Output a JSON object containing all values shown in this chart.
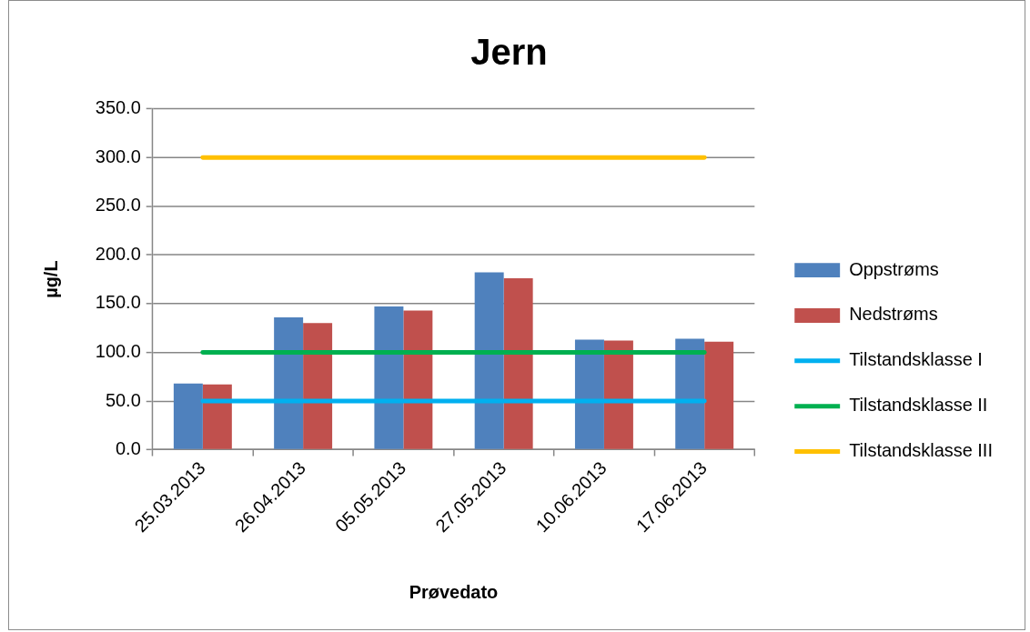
{
  "chart_data": {
    "type": "bar",
    "title": "Jern",
    "xlabel": "Prøvedato",
    "ylabel": "µg/L",
    "categories": [
      "25.03.2013",
      "26.04.2013",
      "05.05.2013",
      "27.05.2013",
      "10.06.2013",
      "17.06.2013"
    ],
    "series": [
      {
        "name": "Oppstrøms",
        "color": "#4f81bd",
        "values": [
          68,
          136,
          147,
          182,
          113,
          114
        ]
      },
      {
        "name": "Nedstrøms",
        "color": "#c0504d",
        "values": [
          67,
          130,
          143,
          176,
          112,
          111
        ]
      },
      {
        "name": "Tilstandsklasse I",
        "type": "line",
        "color": "#00b0f0",
        "values": [
          50,
          50,
          50,
          50,
          50,
          50
        ]
      },
      {
        "name": "Tilstandsklasse II",
        "type": "line",
        "color": "#00b050",
        "values": [
          100,
          100,
          100,
          100,
          100,
          100
        ]
      },
      {
        "name": "Tilstandsklasse III",
        "type": "line",
        "color": "#ffc000",
        "values": [
          300,
          300,
          300,
          300,
          300,
          300
        ]
      }
    ],
    "ylim": [
      0,
      350
    ],
    "yticks": [
      {
        "value": 0,
        "label": "0.0"
      },
      {
        "value": 50,
        "label": "50.0"
      },
      {
        "value": 100,
        "label": "100.0"
      },
      {
        "value": 150,
        "label": "150.0"
      },
      {
        "value": 200,
        "label": "200.0"
      },
      {
        "value": 250,
        "label": "250.0"
      },
      {
        "value": 300,
        "label": "300.0"
      },
      {
        "value": 350,
        "label": "350.0"
      }
    ],
    "grid": "y",
    "legend": "right",
    "marker": "none"
  }
}
